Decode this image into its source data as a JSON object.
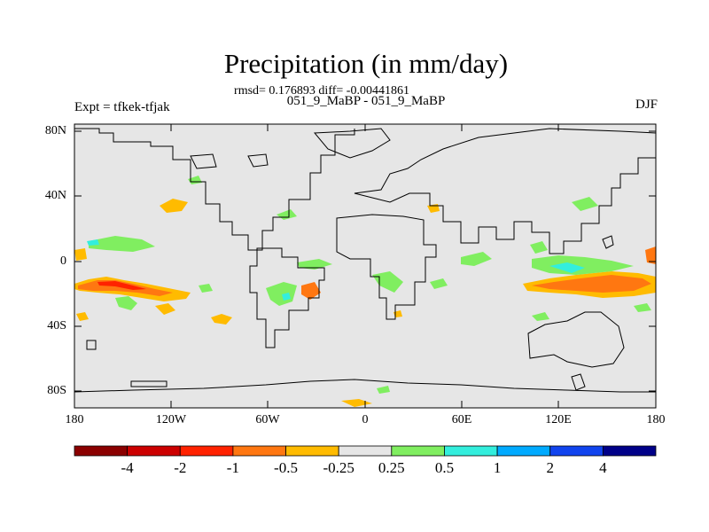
{
  "title": "Precipitation (in mm/day)",
  "stats": "rmsd= 0.176893 diff= -0.00441861",
  "subtitle": "051_9_MaBP - 051_9_MaBP",
  "expt": "Expt = tfkek-tfjak",
  "season": "DJF",
  "lat_labels": [
    "80N",
    "40N",
    "0",
    "40S",
    "80S"
  ],
  "lon_labels": [
    "180",
    "120W",
    "60W",
    "0",
    "60E",
    "120E",
    "180"
  ],
  "colorbar": {
    "colors": [
      "#8b0000",
      "#cc0000",
      "#ff2200",
      "#ff7711",
      "#ffbb00",
      "#e6e6e6",
      "#80ee60",
      "#33eedd",
      "#00aaff",
      "#1144ee",
      "#000088"
    ],
    "labels": [
      "-4",
      "-2",
      "-1",
      "-0.5",
      "-0.25",
      "0.25",
      "0.5",
      "1",
      "2",
      "4"
    ]
  },
  "colors": {
    "background": "#e6e6e6",
    "coastline": "#000000"
  }
}
